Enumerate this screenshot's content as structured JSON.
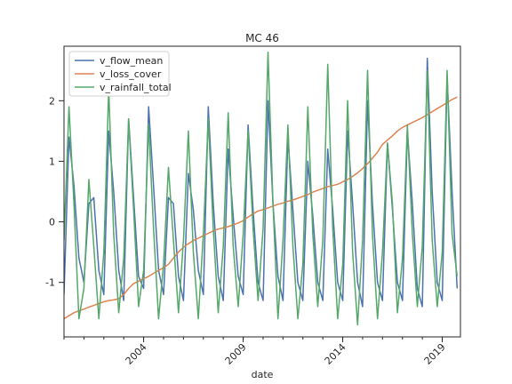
{
  "chart_data": {
    "type": "line",
    "title": "MC 46",
    "xlabel": "date",
    "ylabel": "",
    "x_axis": "date",
    "xlim": [
      "2000-01-01",
      "2019-12-01"
    ],
    "ylim": [
      -1.9,
      2.9
    ],
    "x_ticks": [
      "2004",
      "2009",
      "2014",
      "2019"
    ],
    "y_ticks": [
      -1,
      0,
      1,
      2
    ],
    "grid": false,
    "legend": "top-left",
    "x": [
      "2000-01",
      "2000-04",
      "2000-07",
      "2000-10",
      "2001-01",
      "2001-04",
      "2001-07",
      "2001-10",
      "2002-01",
      "2002-04",
      "2002-07",
      "2002-10",
      "2003-01",
      "2003-04",
      "2003-07",
      "2003-10",
      "2004-01",
      "2004-04",
      "2004-07",
      "2004-10",
      "2005-01",
      "2005-04",
      "2005-07",
      "2005-10",
      "2006-01",
      "2006-04",
      "2006-07",
      "2006-10",
      "2007-01",
      "2007-04",
      "2007-07",
      "2007-10",
      "2008-01",
      "2008-04",
      "2008-07",
      "2008-10",
      "2009-01",
      "2009-04",
      "2009-07",
      "2009-10",
      "2010-01",
      "2010-04",
      "2010-07",
      "2010-10",
      "2011-01",
      "2011-04",
      "2011-07",
      "2011-10",
      "2012-01",
      "2012-04",
      "2012-07",
      "2012-10",
      "2013-01",
      "2013-04",
      "2013-07",
      "2013-10",
      "2014-01",
      "2014-04",
      "2014-07",
      "2014-10",
      "2015-01",
      "2015-04",
      "2015-07",
      "2015-10",
      "2016-01",
      "2016-04",
      "2016-07",
      "2016-10",
      "2017-01",
      "2017-04",
      "2017-07",
      "2017-10",
      "2018-01",
      "2018-04",
      "2018-07",
      "2018-10",
      "2019-01",
      "2019-04",
      "2019-07",
      "2019-10"
    ],
    "series": [
      {
        "name": "v_flow_mean",
        "color": "#4c72b0",
        "values": [
          -1.2,
          1.4,
          0.6,
          -0.6,
          -1.0,
          0.3,
          0.4,
          -0.8,
          -1.2,
          1.5,
          0.5,
          -0.8,
          -1.3,
          1.7,
          0.4,
          -0.9,
          -1.1,
          1.9,
          0.6,
          -0.8,
          -1.2,
          0.4,
          0.3,
          -0.9,
          -1.3,
          0.8,
          0.2,
          -0.8,
          -1.2,
          1.9,
          0.3,
          -0.9,
          -1.3,
          1.2,
          0.1,
          -0.9,
          -1.2,
          1.6,
          0.2,
          -1.0,
          -1.3,
          2.0,
          0.3,
          -0.9,
          -1.3,
          1.4,
          0.2,
          -1.0,
          -1.3,
          1.0,
          0.1,
          -1.0,
          -1.3,
          1.2,
          0.2,
          -1.0,
          -1.3,
          1.5,
          0.3,
          -1.0,
          -1.4,
          2.0,
          0.3,
          -1.0,
          -1.3,
          1.3,
          0.2,
          -1.0,
          -1.3,
          1.5,
          0.3,
          -1.1,
          -1.4,
          2.7,
          0.5,
          -1.0,
          -1.3,
          2.4,
          0.5,
          -1.1
        ]
      },
      {
        "name": "v_loss_cover",
        "color": "#dd8452",
        "values": [
          -1.6,
          -1.55,
          -1.5,
          -1.47,
          -1.44,
          -1.41,
          -1.38,
          -1.35,
          -1.32,
          -1.3,
          -1.29,
          -1.27,
          -1.2,
          -1.1,
          -1.02,
          -0.98,
          -0.94,
          -0.9,
          -0.85,
          -0.8,
          -0.76,
          -0.7,
          -0.6,
          -0.5,
          -0.42,
          -0.36,
          -0.31,
          -0.27,
          -0.23,
          -0.19,
          -0.15,
          -0.12,
          -0.1,
          -0.08,
          -0.05,
          -0.02,
          0.02,
          0.08,
          0.13,
          0.18,
          0.2,
          0.23,
          0.26,
          0.29,
          0.31,
          0.34,
          0.36,
          0.39,
          0.42,
          0.45,
          0.49,
          0.52,
          0.55,
          0.58,
          0.6,
          0.62,
          0.66,
          0.7,
          0.75,
          0.81,
          0.88,
          0.96,
          1.05,
          1.15,
          1.28,
          1.35,
          1.42,
          1.5,
          1.56,
          1.6,
          1.64,
          1.68,
          1.72,
          1.77,
          1.82,
          1.87,
          1.92,
          1.97,
          2.02,
          2.06
        ]
      },
      {
        "name": "v_rainfall_total",
        "color": "#55a868",
        "values": [
          -0.3,
          1.9,
          0.3,
          -1.6,
          -1.1,
          0.7,
          -0.4,
          -1.6,
          -0.5,
          2.2,
          -0.2,
          -1.5,
          -0.6,
          1.7,
          0.2,
          -1.4,
          -0.8,
          1.6,
          -0.1,
          -1.6,
          -0.7,
          0.9,
          -0.3,
          -1.5,
          -0.3,
          1.5,
          -0.5,
          -1.6,
          -0.2,
          1.7,
          -0.1,
          -1.5,
          -0.4,
          1.8,
          -0.4,
          -1.4,
          -0.2,
          1.5,
          -0.1,
          -1.3,
          -0.1,
          2.8,
          0.3,
          -1.6,
          -0.3,
          1.6,
          -0.4,
          -1.6,
          -0.7,
          1.9,
          -0.2,
          -1.4,
          -0.3,
          2.6,
          -0.1,
          -1.6,
          -0.7,
          2.0,
          -0.5,
          -1.7,
          -0.3,
          2.5,
          -0.2,
          -1.6,
          -0.5,
          1.3,
          0.3,
          -1.5,
          -0.6,
          1.6,
          -0.2,
          -1.4,
          -0.4,
          2.5,
          -0.3,
          -1.4,
          -0.5,
          2.5,
          -0.2,
          -0.9
        ]
      }
    ]
  }
}
